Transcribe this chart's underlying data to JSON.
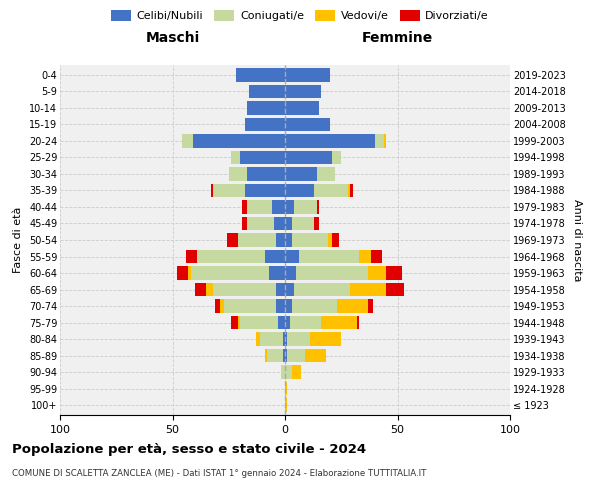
{
  "age_groups": [
    "100+",
    "95-99",
    "90-94",
    "85-89",
    "80-84",
    "75-79",
    "70-74",
    "65-69",
    "60-64",
    "55-59",
    "50-54",
    "45-49",
    "40-44",
    "35-39",
    "30-34",
    "25-29",
    "20-24",
    "15-19",
    "10-14",
    "5-9",
    "0-4"
  ],
  "birth_years": [
    "≤ 1923",
    "1924-1928",
    "1929-1933",
    "1934-1938",
    "1939-1943",
    "1944-1948",
    "1949-1953",
    "1954-1958",
    "1959-1963",
    "1964-1968",
    "1969-1973",
    "1974-1978",
    "1979-1983",
    "1984-1988",
    "1989-1993",
    "1994-1998",
    "1999-2003",
    "2004-2008",
    "2009-2013",
    "2014-2018",
    "2019-2023"
  ],
  "males": {
    "celibi": [
      0,
      0,
      0,
      1,
      1,
      3,
      4,
      4,
      7,
      9,
      4,
      5,
      6,
      18,
      17,
      20,
      41,
      18,
      17,
      16,
      22
    ],
    "coniugati": [
      0,
      0,
      2,
      7,
      10,
      17,
      23,
      28,
      35,
      30,
      17,
      12,
      11,
      14,
      8,
      4,
      5,
      0,
      0,
      0,
      0
    ],
    "vedovi": [
      0,
      0,
      0,
      1,
      2,
      1,
      2,
      3,
      1,
      0,
      0,
      0,
      0,
      0,
      0,
      0,
      0,
      0,
      0,
      0,
      0
    ],
    "divorziati": [
      0,
      0,
      0,
      0,
      0,
      3,
      2,
      5,
      5,
      5,
      5,
      2,
      2,
      1,
      0,
      0,
      0,
      0,
      0,
      0,
      0
    ]
  },
  "females": {
    "nubili": [
      0,
      0,
      0,
      1,
      1,
      2,
      3,
      4,
      5,
      6,
      3,
      3,
      4,
      13,
      14,
      21,
      40,
      20,
      15,
      16,
      20
    ],
    "coniugate": [
      0,
      0,
      3,
      8,
      10,
      14,
      20,
      25,
      32,
      27,
      16,
      10,
      10,
      15,
      8,
      4,
      4,
      0,
      0,
      0,
      0
    ],
    "vedove": [
      1,
      1,
      4,
      9,
      14,
      16,
      14,
      16,
      8,
      5,
      2,
      0,
      0,
      1,
      0,
      0,
      1,
      0,
      0,
      0,
      0
    ],
    "divorziate": [
      0,
      0,
      0,
      0,
      0,
      1,
      2,
      8,
      7,
      5,
      3,
      2,
      1,
      1,
      0,
      0,
      0,
      0,
      0,
      0,
      0
    ]
  },
  "colors": {
    "celibi": "#4472c4",
    "coniugati": "#c5d9a0",
    "vedovi": "#ffc000",
    "divorziati": "#e00000"
  },
  "xlim": 100,
  "title": "Popolazione per età, sesso e stato civile - 2024",
  "subtitle": "COMUNE DI SCALETTA ZANCLEA (ME) - Dati ISTAT 1° gennaio 2024 - Elaborazione TUTTITALIA.IT",
  "ylabel_left": "Fasce di età",
  "ylabel_right": "Anni di nascita",
  "xlabel_left": "Maschi",
  "xlabel_right": "Femmine"
}
